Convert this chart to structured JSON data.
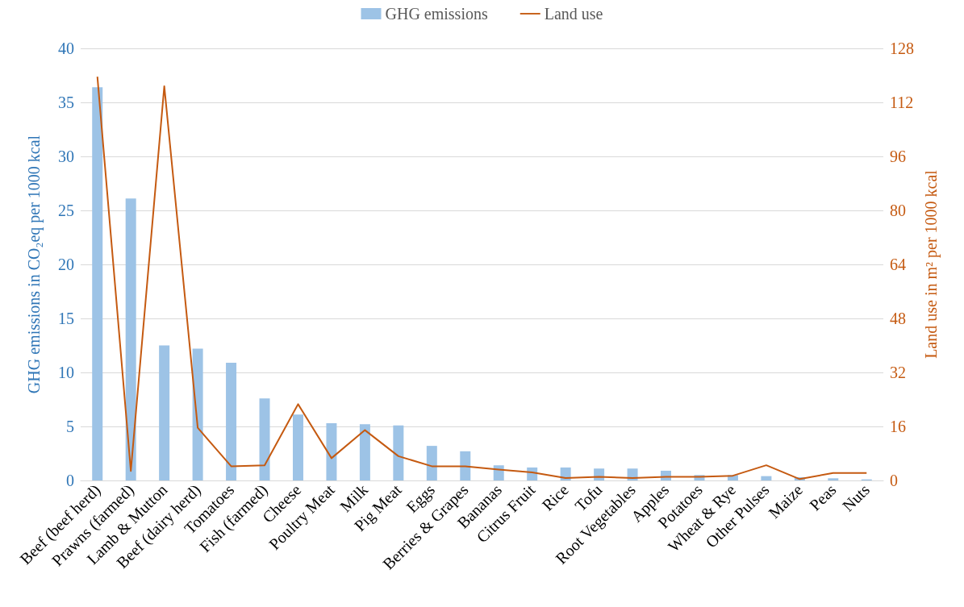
{
  "chart_data": {
    "type": "bar",
    "categories": [
      "Beef (beef herd)",
      "Prawns (farmed)",
      "Lamb & Mutton",
      "Beef (dairy herd)",
      "Tomatoes",
      "Fish (farmed)",
      "Cheese",
      "Poultry Meat",
      "Milk",
      "Pig Meat",
      "Eggs",
      "Berries & Grapes",
      "Bananas",
      "Citrus Fruit",
      "Rice",
      "Tofu",
      "Root Vegetables",
      "Apples",
      "Potatoes",
      "Wheat & Rye",
      "Other Pulses",
      "Maize",
      "Peas",
      "Nuts"
    ],
    "series": [
      {
        "name": "GHG emissions",
        "color": "#9dc3e6",
        "values": [
          36.4,
          26.1,
          12.5,
          12.2,
          10.9,
          7.6,
          6.1,
          5.3,
          5.2,
          5.1,
          3.2,
          2.7,
          1.4,
          1.2,
          1.2,
          1.1,
          1.1,
          0.9,
          0.5,
          0.5,
          0.4,
          0.3,
          0.2,
          0.1
        ]
      },
      {
        "name": "Land use",
        "type": "line",
        "axis": "y2",
        "color": "#c55a11",
        "values": [
          119.6,
          2.8,
          116.8,
          15.6,
          4.2,
          4.5,
          22.6,
          6.6,
          14.9,
          7.2,
          4.2,
          4.2,
          3.2,
          2.4,
          0.7,
          1.1,
          0.7,
          1.1,
          1.1,
          1.4,
          4.5,
          0.4,
          2.2,
          2.2
        ]
      }
    ],
    "ylabel": "GHG emissions in CO₂eq per 1000 kcal",
    "y2label": "Land use in m² per 1000 kcal",
    "ylim": [
      0,
      40
    ],
    "yticks": [
      0,
      5,
      10,
      15,
      20,
      25,
      30,
      35,
      40
    ],
    "y2lim": [
      0,
      128
    ],
    "y2ticks": [
      0,
      16,
      32,
      48,
      64,
      80,
      96,
      112,
      128
    ],
    "grid": "y",
    "legend": "top",
    "marker": "none",
    "line_style": "solid"
  }
}
